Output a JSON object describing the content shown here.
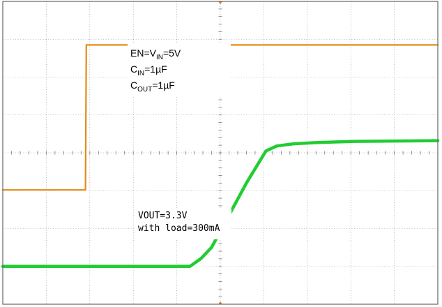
{
  "chart_data": {
    "type": "line",
    "title": "",
    "xlabel": "",
    "ylabel": "",
    "grid": true,
    "divisions": {
      "x": 10,
      "y": 8
    },
    "xlim": [
      0,
      10
    ],
    "ylim": [
      -4,
      4
    ],
    "colors": {
      "en": "#e58a18",
      "vout": "#22cc33",
      "grid": "#888888",
      "marker": "#e8741a"
    },
    "series": [
      {
        "key": "en",
        "name": "",
        "x": [
          0,
          1.9,
          1.92,
          10
        ],
        "y": [
          -0.98,
          -0.98,
          2.85,
          2.85
        ]
      },
      {
        "key": "vout",
        "name": "",
        "x": [
          0,
          4.3,
          4.55,
          4.8,
          5.6,
          6.05,
          6.3,
          6.7,
          7.2,
          8.0,
          10
        ],
        "y": [
          -3.0,
          -3.0,
          -2.8,
          -2.5,
          -0.8,
          0.05,
          0.18,
          0.24,
          0.27,
          0.3,
          0.32
        ]
      }
    ],
    "annotations": {
      "cond": {
        "en": "EN=V",
        "en_sub": "IN",
        "en_end": "=5V",
        "cin": "C",
        "cin_sub": "IN",
        "cin_end": "=1µF",
        "cout": "C",
        "cout_sub": "OUT",
        "cout_end": "=1µF"
      },
      "vout": {
        "line1": "VOUT=3.3V",
        "line2": "with load=300mA"
      }
    }
  }
}
